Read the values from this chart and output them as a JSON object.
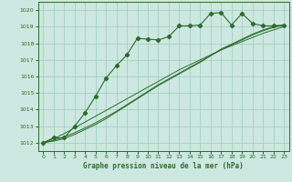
{
  "title": "Graphe pression niveau de la mer (hPa)",
  "bg_color": "#cde8e0",
  "grid_color": "#9cccc0",
  "line_color": "#2d6b2d",
  "ylim": [
    1011.5,
    1020.5
  ],
  "xlim": [
    -0.5,
    23.5
  ],
  "yticks": [
    1012,
    1013,
    1014,
    1015,
    1016,
    1017,
    1018,
    1019,
    1020
  ],
  "xticks": [
    0,
    1,
    2,
    3,
    4,
    5,
    6,
    7,
    8,
    9,
    10,
    11,
    12,
    13,
    14,
    15,
    16,
    17,
    18,
    19,
    20,
    21,
    22,
    23
  ],
  "main_series": [
    1012.0,
    1012.3,
    1012.3,
    1013.0,
    1013.8,
    1014.8,
    1015.9,
    1016.65,
    1017.3,
    1018.3,
    1018.25,
    1018.2,
    1018.4,
    1019.05,
    1019.05,
    1019.1,
    1019.8,
    1019.85,
    1019.1,
    1019.8,
    1019.2,
    1019.05,
    1019.05,
    1019.1
  ],
  "line1": [
    1012.0,
    1012.25,
    1012.55,
    1012.9,
    1013.25,
    1013.6,
    1013.95,
    1014.3,
    1014.65,
    1015.0,
    1015.35,
    1015.7,
    1016.05,
    1016.4,
    1016.7,
    1017.0,
    1017.3,
    1017.6,
    1017.85,
    1018.1,
    1018.35,
    1018.6,
    1018.8,
    1019.0
  ],
  "line2": [
    1012.0,
    1012.15,
    1012.35,
    1012.6,
    1012.9,
    1013.2,
    1013.55,
    1013.9,
    1014.3,
    1014.7,
    1015.1,
    1015.5,
    1015.85,
    1016.2,
    1016.55,
    1016.9,
    1017.25,
    1017.6,
    1017.9,
    1018.2,
    1018.5,
    1018.75,
    1018.95,
    1019.1
  ],
  "line3": [
    1012.0,
    1012.1,
    1012.25,
    1012.5,
    1012.8,
    1013.1,
    1013.45,
    1013.85,
    1014.25,
    1014.65,
    1015.05,
    1015.45,
    1015.8,
    1016.15,
    1016.5,
    1016.85,
    1017.25,
    1017.65,
    1017.95,
    1018.25,
    1018.55,
    1018.8,
    1019.0,
    1019.1
  ]
}
